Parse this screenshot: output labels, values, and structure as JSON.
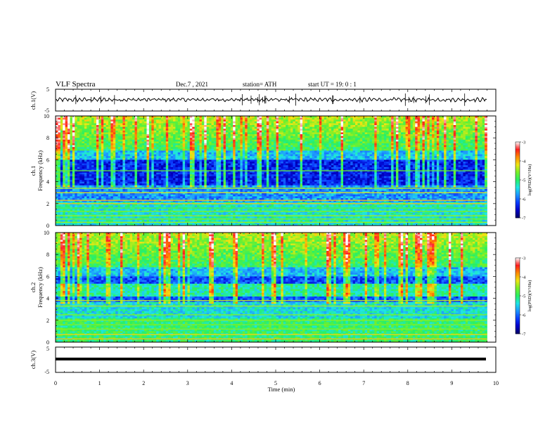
{
  "header": {
    "title": "VLF  Spectra",
    "date": "Dec.7  , 2021",
    "station": "station= ATH",
    "start_ut": "start  UT  =    19: 0   : 1"
  },
  "chart_data": {
    "type": "heatmap",
    "time_axis": {
      "label": "Time  (min)",
      "range": [
        0,
        10
      ],
      "ticks": [
        "0",
        "1",
        "2",
        "3",
        "4",
        "5",
        "6",
        "7",
        "8",
        "9",
        "10"
      ]
    },
    "panels": [
      {
        "name": "ch.1(V)",
        "type": "line",
        "ylabel": "ch.1(V)",
        "ylim": [
          -5,
          5
        ],
        "yticks": [
          "5",
          "-5"
        ],
        "baseline_value": 0.2,
        "data_end_min": 9.8
      },
      {
        "name": "ch.1 spectrogram",
        "type": "heatmap",
        "ylabel_lines": [
          "ch.1",
          "Frequency  (kHz)"
        ],
        "ylim": [
          0,
          10
        ],
        "yticks": [
          "0",
          "2",
          "4",
          "6",
          "8",
          "10"
        ],
        "data_end_min": 9.8,
        "colorbar": {
          "label": "log(PSD)(V²/Hz)",
          "range": [
            -7,
            -3
          ],
          "ticks": [
            "-3",
            "-4",
            "-5",
            "-6",
            "-7"
          ]
        }
      },
      {
        "name": "ch.2 spectrogram",
        "type": "heatmap",
        "ylabel_lines": [
          "ch.2",
          "Frequency  (kHz)"
        ],
        "ylim": [
          0,
          10
        ],
        "yticks": [
          "0",
          "2",
          "4",
          "6",
          "8",
          "10"
        ],
        "data_end_min": 9.8,
        "colorbar": {
          "label": "log(PSD)(V²/Hz)",
          "range": [
            -7,
            -3
          ],
          "ticks": [
            "-3",
            "-4",
            "-5",
            "-6",
            "-7"
          ]
        }
      },
      {
        "name": "ch.3(V)",
        "type": "line",
        "ylabel": "ch.3(V)",
        "ylim": [
          -5,
          5
        ],
        "yticks": [
          "5",
          "-5"
        ],
        "baseline_value": -1.5,
        "data_end_min": 9.8
      }
    ],
    "colormap": [
      "#000066",
      "#0000c8",
      "#0a3cff",
      "#1e96ff",
      "#1ee6e6",
      "#28f064",
      "#78f028",
      "#f0e614",
      "#ff8c00",
      "#ff1e1e",
      "#ffffff"
    ]
  }
}
